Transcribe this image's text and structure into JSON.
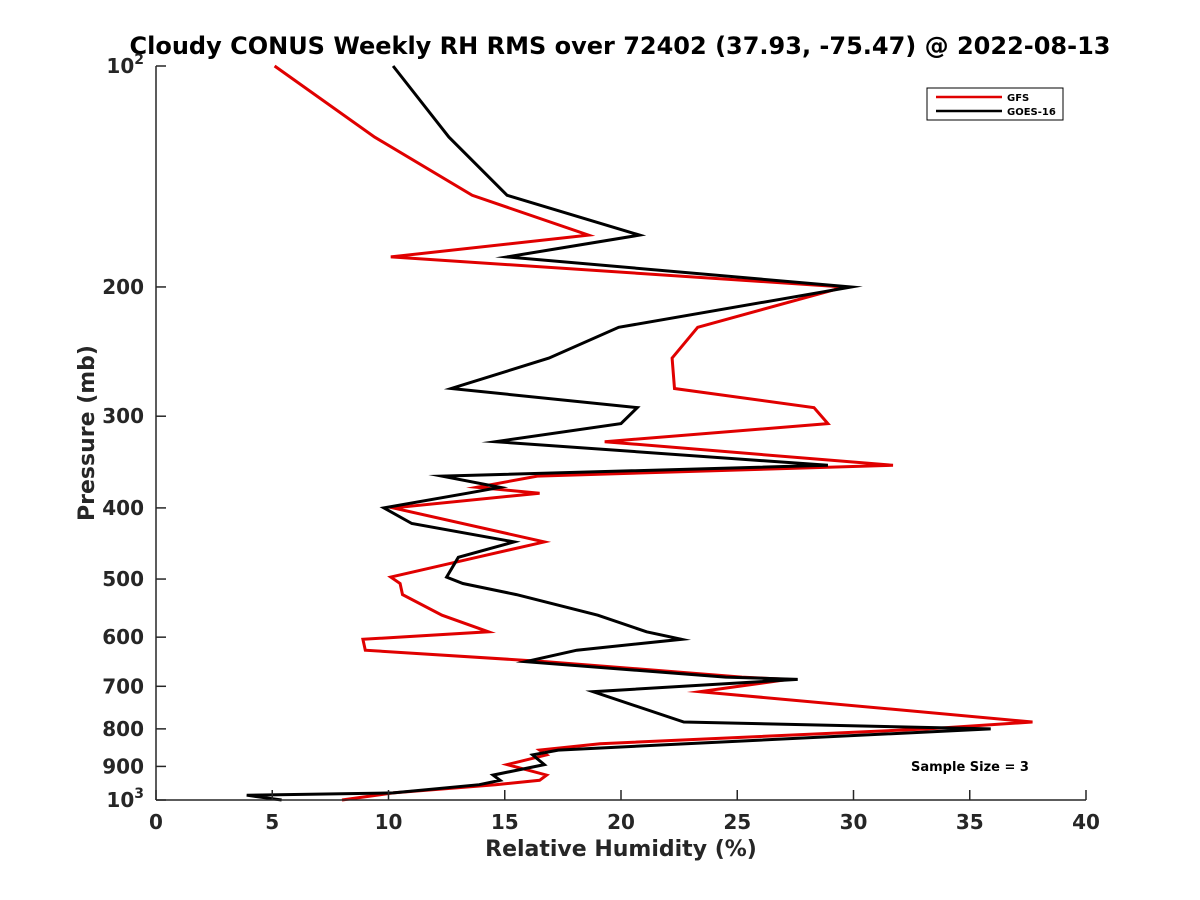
{
  "chart_data": {
    "type": "line",
    "title": "Cloudy CONUS Weekly RH RMS over 72402 (37.93, -75.47) @ 2022-08-13",
    "xlabel": "Relative Humidity (%)",
    "ylabel": "Pressure (mb)",
    "xlim": [
      0,
      40
    ],
    "ylim": [
      100,
      1000
    ],
    "y_scale": "log",
    "y_reversed": true,
    "grid": false,
    "legend_position": "top-right",
    "x_ticks": [
      "0",
      "5",
      "10",
      "15",
      "20",
      "25",
      "30",
      "35",
      "40"
    ],
    "y_ticks": [
      {
        "value": 100,
        "base": "10",
        "exp": "2"
      },
      {
        "value": 200,
        "label": "200"
      },
      {
        "value": 300,
        "label": "300"
      },
      {
        "value": 400,
        "label": "400"
      },
      {
        "value": 500,
        "label": "500"
      },
      {
        "value": 600,
        "label": "600"
      },
      {
        "value": 700,
        "label": "700"
      },
      {
        "value": 800,
        "label": "800"
      },
      {
        "value": 900,
        "label": "900"
      },
      {
        "value": 1000,
        "base": "10",
        "exp": "3"
      }
    ],
    "annotation": "Sample Size = 3",
    "series": [
      {
        "name": "GFS",
        "color": "#e00000",
        "points": [
          [
            5.1,
            100
          ],
          [
            9.4,
            125
          ],
          [
            13.6,
            150
          ],
          [
            18.6,
            170
          ],
          [
            10.1,
            182
          ],
          [
            29.6,
            200
          ],
          [
            23.3,
            227
          ],
          [
            22.2,
            250
          ],
          [
            22.3,
            275
          ],
          [
            28.3,
            292
          ],
          [
            28.9,
            307
          ],
          [
            19.3,
            325
          ],
          [
            31.7,
            350
          ],
          [
            16.4,
            362
          ],
          [
            13.8,
            375
          ],
          [
            16.5,
            382
          ],
          [
            10.2,
            400
          ],
          [
            16.7,
            445
          ],
          [
            13.8,
            467
          ],
          [
            10.1,
            497
          ],
          [
            10.5,
            507
          ],
          [
            10.6,
            525
          ],
          [
            12.3,
            560
          ],
          [
            14.3,
            590
          ],
          [
            8.9,
            604
          ],
          [
            9.0,
            625
          ],
          [
            16.8,
            648
          ],
          [
            25.2,
            680
          ],
          [
            27.2,
            685
          ],
          [
            23.4,
            712
          ],
          [
            37.7,
            783
          ],
          [
            33.2,
            800
          ],
          [
            19.1,
            838
          ],
          [
            16.5,
            855
          ],
          [
            16.8,
            868
          ],
          [
            15.1,
            895
          ],
          [
            16.8,
            925
          ],
          [
            16.5,
            940
          ],
          [
            14.6,
            953
          ],
          [
            10.2,
            978
          ],
          [
            8.0,
            1000
          ]
        ]
      },
      {
        "name": "GOES-16",
        "color": "#000000",
        "points": [
          [
            10.2,
            100
          ],
          [
            12.6,
            125
          ],
          [
            15.1,
            150
          ],
          [
            20.8,
            170
          ],
          [
            15.1,
            182
          ],
          [
            29.9,
            200
          ],
          [
            19.9,
            227
          ],
          [
            16.9,
            250
          ],
          [
            12.7,
            275
          ],
          [
            20.7,
            292
          ],
          [
            20.0,
            307
          ],
          [
            14.6,
            325
          ],
          [
            28.9,
            350
          ],
          [
            12.3,
            362
          ],
          [
            14.8,
            375
          ],
          [
            13.4,
            382
          ],
          [
            9.8,
            400
          ],
          [
            11.0,
            420
          ],
          [
            15.4,
            445
          ],
          [
            13.0,
            467
          ],
          [
            12.5,
            497
          ],
          [
            13.2,
            507
          ],
          [
            15.5,
            525
          ],
          [
            19.0,
            560
          ],
          [
            21.1,
            590
          ],
          [
            22.6,
            604
          ],
          [
            18.1,
            625
          ],
          [
            15.9,
            648
          ],
          [
            24.5,
            680
          ],
          [
            27.6,
            685
          ],
          [
            18.8,
            712
          ],
          [
            22.7,
            783
          ],
          [
            35.9,
            800
          ],
          [
            22.8,
            838
          ],
          [
            17.3,
            855
          ],
          [
            16.2,
            868
          ],
          [
            16.7,
            895
          ],
          [
            14.5,
            925
          ],
          [
            14.8,
            940
          ],
          [
            13.9,
            953
          ],
          [
            10.2,
            978
          ],
          [
            3.9,
            985
          ],
          [
            5.4,
            1000
          ]
        ]
      }
    ]
  }
}
